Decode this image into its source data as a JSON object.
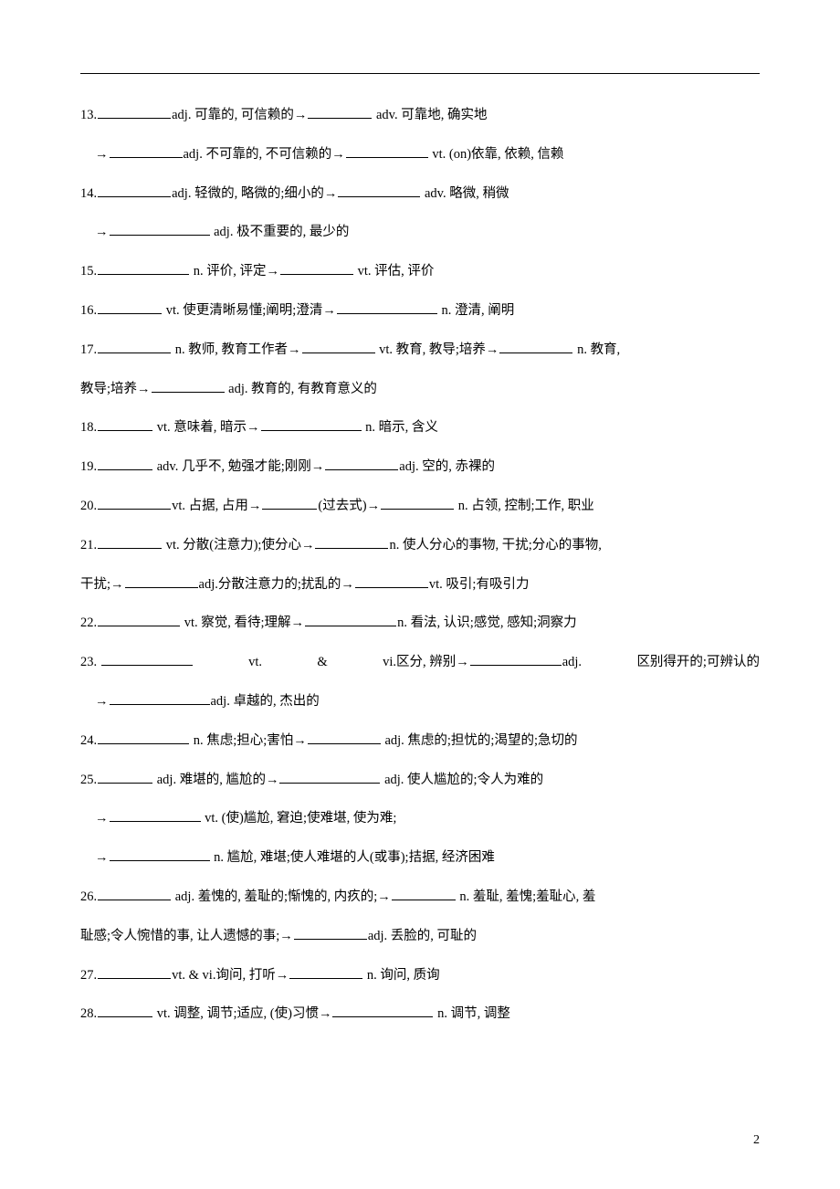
{
  "items": {
    "i13a": "13.",
    "i13a_t1": "adj. 可靠的, 可信赖的→",
    "i13a_t2": " adv. 可靠地, 确实地",
    "i13b_t1": "→",
    "i13b_t2": "adj. 不可靠的, 不可信赖的→",
    "i13b_t3": " vt. (on)依靠, 依赖, 信赖",
    "i14a": "14.",
    "i14a_t1": "adj. 轻微的, 略微的;细小的→",
    "i14a_t2": " adv. 略微, 稍微",
    "i14b_t1": "→",
    "i14b_t2": " adj. 极不重要的, 最少的",
    "i15": "15.",
    "i15_t1": " n. 评价, 评定→",
    "i15_t2": " vt. 评估, 评价",
    "i16": "16.",
    "i16_t1": " vt. 使更清晰易懂;阐明;澄清→",
    "i16_t2": " n. 澄清, 阐明",
    "i17a": "17.",
    "i17a_t1": " n. 教师, 教育工作者→",
    "i17a_t2": " vt. 教育, 教导;培养→",
    "i17a_t3": " n. 教育,",
    "i17b": "教导;培养→",
    "i17b_t2": " adj. 教育的, 有教育意义的",
    "i18": "18.",
    "i18_t1": " vt. 意味着, 暗示→",
    "i18_t2": " n. 暗示, 含义",
    "i19": "19.",
    "i19_t1": " adv. 几乎不, 勉强才能;刚刚→",
    "i19_t2": "adj. 空的, 赤裸的",
    "i20": "20.",
    "i20_t1": "vt. 占据, 占用→",
    "i20_t2": "(过去式)→",
    "i20_t3": " n. 占领, 控制;工作, 职业",
    "i21a": "21.",
    "i21a_t1": " vt. 分散(注意力);使分心→",
    "i21a_t2": "n. 使人分心的事物, 干扰;分心的事物,",
    "i21b": "干扰;→",
    "i21b_t2": "adj.分散注意力的;扰乱的→",
    "i21b_t3": "vt. 吸引;有吸引力",
    "i22": "22.",
    "i22_t1": " vt. 察觉, 看待;理解→",
    "i22_t2": "n. 看法, 认识;感觉, 感知;洞察力",
    "i23a": "23.",
    "i23a_t1": "vt.",
    "i23a_t2": "&",
    "i23a_t3": "vi.区分, 辨别→",
    "i23a_t4": "adj.",
    "i23a_t5": "区别得开的;可辨认的",
    "i23b_t1": "→",
    "i23b_t2": "adj. 卓越的, 杰出的",
    "i24": "24.",
    "i24_t1": " n. 焦虑;担心;害怕→",
    "i24_t2": " adj. 焦虑的;担忧的;渴望的;急切的",
    "i25a": "25.",
    "i25a_t1": " adj. 难堪的, 尴尬的→",
    "i25a_t2": " adj. 使人尴尬的;令人为难的",
    "i25b_t1": "→",
    "i25b_t2": " vt. (使)尴尬, 窘迫;使难堪, 使为难;",
    "i25c_t1": "→",
    "i25c_t2": " n. 尴尬, 难堪;使人难堪的人(或事);拮据, 经济困难",
    "i26a": "26.",
    "i26a_t1": " adj. 羞愧的, 羞耻的;惭愧的, 内疚的;→",
    "i26a_t2": " n. 羞耻, 羞愧;羞耻心, 羞",
    "i26b": "耻感;令人惋惜的事, 让人遗憾的事;→",
    "i26b_t2": "adj. 丢脸的, 可耻的",
    "i27": "27.",
    "i27_t1": "vt. & vi.询问, 打听→",
    "i27_t2": " n. 询问, 质询",
    "i28": "28.",
    "i28_t1": " vt. 调整, 调节;适应, (使)习惯→",
    "i28_t2": " n. 调节, 调整"
  },
  "page_number": "2"
}
